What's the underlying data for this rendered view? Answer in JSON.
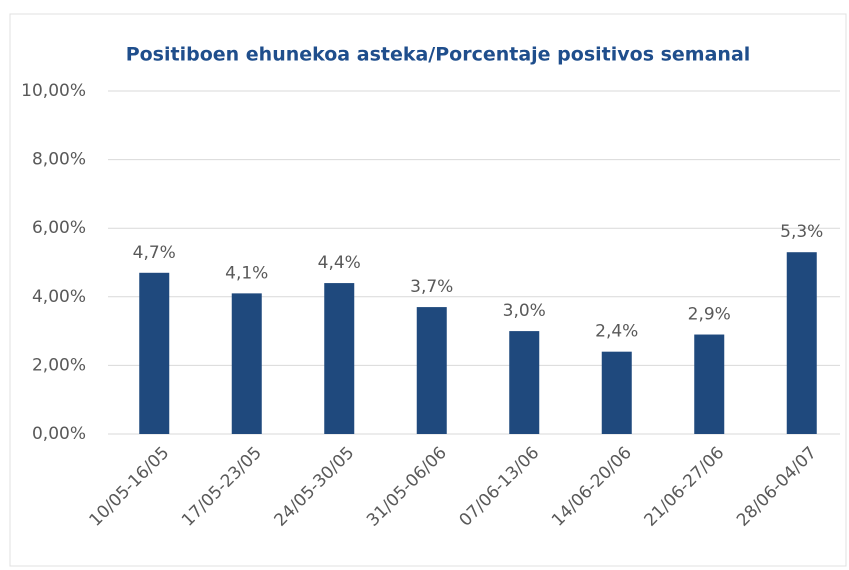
{
  "chart_data": {
    "type": "bar",
    "title": "Positiboen ehunekoa asteka/Porcentaje positivos semanal",
    "categories": [
      "10/05-16/05",
      "17/05-23/05",
      "24/05-30/05",
      "31/05-06/06",
      "07/06-13/06",
      "14/06-20/06",
      "21/06-27/06",
      "28/06-04/07"
    ],
    "values": [
      4.7,
      4.1,
      4.4,
      3.7,
      3.0,
      2.4,
      2.9,
      5.3
    ],
    "value_labels": [
      "4,7%",
      "4,1%",
      "4,4%",
      "3,7%",
      "3,0%",
      "2,4%",
      "2,9%",
      "5,3%"
    ],
    "color": "#1f497d",
    "ylim": [
      0,
      10
    ],
    "yticks": [
      {
        "value": 0,
        "label": "0,00%"
      },
      {
        "value": 2,
        "label": "2,00%"
      },
      {
        "value": 4,
        "label": "4,00%"
      },
      {
        "value": 6,
        "label": "6,00%"
      },
      {
        "value": 8,
        "label": "8,00%"
      },
      {
        "value": 10,
        "label": "10,00%"
      }
    ],
    "grid": true
  }
}
